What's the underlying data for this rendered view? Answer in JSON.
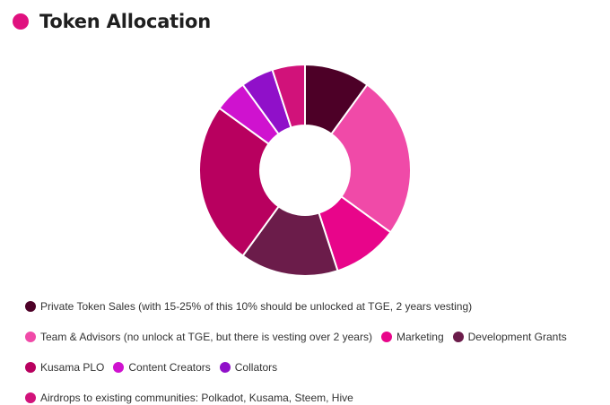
{
  "header": {
    "title": "Token Allocation",
    "dot_color": "#e0117f"
  },
  "chart_data": {
    "type": "pie",
    "variant": "donut",
    "title": "Token Allocation",
    "legend_position": "bottom",
    "series": [
      {
        "name": "Private Token Sales (with 15-25% of this 10% should be unlocked at TGE, 2 years vesting)",
        "value": 10,
        "color": "#4d0027"
      },
      {
        "name": "Team & Advisors (no unlock at TGE, but there is vesting over 2 years)",
        "value": 25,
        "color": "#f04aa8"
      },
      {
        "name": "Marketing",
        "value": 10,
        "color": "#e8058a"
      },
      {
        "name": "Development Grants",
        "value": 15,
        "color": "#6b1c4a"
      },
      {
        "name": "Kusama PLO",
        "value": 25,
        "color": "#b8005f"
      },
      {
        "name": "Content Creators",
        "value": 5,
        "color": "#cf12cf"
      },
      {
        "name": "Collators",
        "value": 5,
        "color": "#9010c9"
      },
      {
        "name": "Airdrops to existing communities: Polkadot, Kusama, Steem, Hive",
        "value": 5,
        "color": "#d1127a"
      }
    ],
    "legend_rows": [
      [
        0
      ],
      [
        1,
        2,
        3
      ],
      [
        4,
        5,
        6
      ],
      [
        7
      ]
    ]
  }
}
